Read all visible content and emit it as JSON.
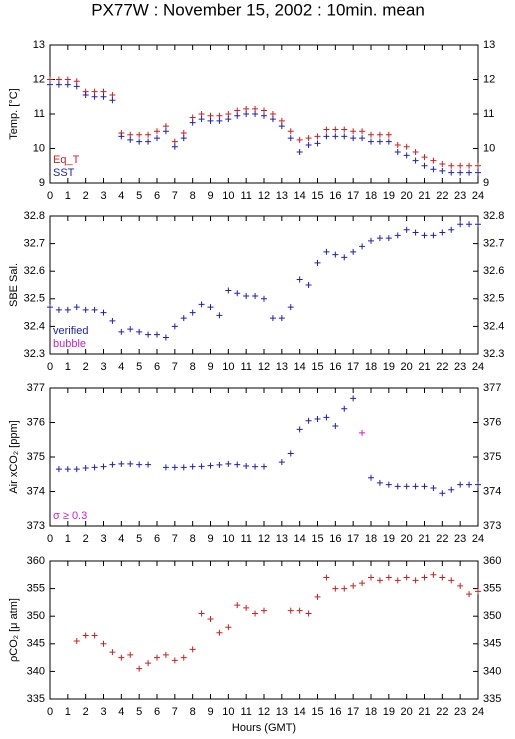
{
  "chart_data": [
    {
      "type": "scatter",
      "title": "PX77W : November 15, 2002 : 10min. mean",
      "ylabel": "Temp. [°C]",
      "x": [
        0,
        0.5,
        1,
        1.5,
        2,
        2.5,
        3,
        3.5,
        4,
        4.5,
        5,
        5.5,
        6,
        6.5,
        7,
        7.5,
        8,
        8.5,
        9,
        9.5,
        10,
        10.5,
        11,
        11.5,
        12,
        12.5,
        13,
        13.5,
        14,
        14.5,
        15,
        15.5,
        16,
        16.5,
        17,
        17.5,
        18,
        18.5,
        19,
        19.5,
        20,
        20.5,
        21,
        21.5,
        22,
        22.5,
        23,
        23.5,
        24
      ],
      "series": [
        {
          "name": "Eq_T",
          "color": "#cc2020",
          "values": [
            12.0,
            12.0,
            12.0,
            11.95,
            11.65,
            11.65,
            11.65,
            11.55,
            10.45,
            10.4,
            10.4,
            10.4,
            10.5,
            10.65,
            10.2,
            10.45,
            10.9,
            11.0,
            10.95,
            10.95,
            11.0,
            11.1,
            11.15,
            11.15,
            11.1,
            11.0,
            10.8,
            10.5,
            10.25,
            10.3,
            10.35,
            10.55,
            10.55,
            10.55,
            10.5,
            10.5,
            10.4,
            10.4,
            10.4,
            10.1,
            10.05,
            9.9,
            9.75,
            9.65,
            9.55,
            9.5,
            9.5,
            9.5,
            9.5
          ]
        },
        {
          "name": "SST",
          "color": "#2020b0",
          "values": [
            11.85,
            11.85,
            11.85,
            11.8,
            11.55,
            11.5,
            11.5,
            11.4,
            10.35,
            10.25,
            10.2,
            10.2,
            10.3,
            10.5,
            10.05,
            10.3,
            10.75,
            10.85,
            10.8,
            10.8,
            10.85,
            10.95,
            11.0,
            11.0,
            10.95,
            10.85,
            10.65,
            10.3,
            9.9,
            10.1,
            10.15,
            10.35,
            10.35,
            10.35,
            10.3,
            10.3,
            10.2,
            10.2,
            10.2,
            9.9,
            9.8,
            9.65,
            9.5,
            9.4,
            9.35,
            9.3,
            9.3,
            9.3,
            9.3
          ]
        }
      ],
      "xlim": [
        0,
        24
      ],
      "xticks": [
        0,
        1,
        2,
        3,
        4,
        5,
        6,
        7,
        8,
        9,
        10,
        11,
        12,
        13,
        14,
        15,
        16,
        17,
        18,
        19,
        20,
        21,
        22,
        23,
        24
      ],
      "ylim": [
        9,
        13
      ],
      "yticks": [
        9,
        10,
        11,
        12,
        13
      ],
      "legend": "lower left"
    },
    {
      "type": "scatter",
      "ylabel": "SBE Sal.",
      "x": [
        0,
        0.5,
        1,
        1.5,
        2,
        2.5,
        3,
        3.5,
        4,
        4.5,
        5,
        5.5,
        6,
        6.5,
        7,
        7.5,
        8,
        8.5,
        9,
        9.5,
        10,
        10.5,
        11,
        11.5,
        12,
        12.5,
        13,
        13.5,
        14,
        14.5,
        15,
        15.5,
        16,
        16.5,
        17,
        17.5,
        18,
        18.5,
        19,
        19.5,
        20,
        20.5,
        21,
        21.5,
        22,
        22.5,
        23,
        23.5,
        24
      ],
      "series": [
        {
          "name": "verified",
          "color": "#2020b0",
          "values": [
            32.47,
            32.46,
            32.46,
            32.47,
            32.46,
            32.46,
            32.45,
            32.42,
            32.38,
            32.39,
            32.38,
            32.37,
            32.37,
            32.36,
            32.4,
            32.43,
            32.45,
            32.48,
            32.47,
            32.44,
            32.53,
            32.52,
            32.51,
            32.51,
            32.5,
            32.43,
            32.43,
            32.47,
            32.57,
            32.55,
            32.63,
            32.67,
            32.66,
            32.65,
            32.67,
            32.69,
            32.71,
            32.72,
            32.72,
            32.73,
            32.75,
            32.74,
            32.73,
            32.73,
            32.74,
            32.75,
            32.77,
            32.77,
            32.77
          ]
        },
        {
          "name": "bubble",
          "color": "#cc20cc",
          "values": [
            null,
            null,
            null,
            null,
            null,
            null,
            null,
            null,
            null,
            null,
            null,
            null,
            null,
            null,
            null,
            null,
            null,
            null,
            null,
            null,
            null,
            null,
            null,
            null,
            null,
            null,
            null,
            null,
            null,
            null,
            null,
            null,
            null,
            null,
            null,
            null,
            null,
            null,
            null,
            null,
            null,
            null,
            null,
            null,
            null,
            null,
            null,
            null,
            null
          ]
        }
      ],
      "xlim": [
        0,
        24
      ],
      "xticks": [
        0,
        1,
        2,
        3,
        4,
        5,
        6,
        7,
        8,
        9,
        10,
        11,
        12,
        13,
        14,
        15,
        16,
        17,
        18,
        19,
        20,
        21,
        22,
        23,
        24
      ],
      "ylim": [
        32.3,
        32.8
      ],
      "yticks": [
        32.3,
        32.4,
        32.5,
        32.6,
        32.7,
        32.8
      ],
      "legend": "lower left"
    },
    {
      "type": "scatter",
      "ylabel": "Air xCO₂ [ppm]",
      "x": [
        0,
        0.5,
        1,
        1.5,
        2,
        2.5,
        3,
        3.5,
        4,
        4.5,
        5,
        5.5,
        6,
        6.5,
        7,
        7.5,
        8,
        8.5,
        9,
        9.5,
        10,
        10.5,
        11,
        11.5,
        12,
        12.5,
        13,
        13.5,
        14,
        14.5,
        15,
        15.5,
        16,
        16.5,
        17,
        17.5,
        18,
        18.5,
        19,
        19.5,
        20,
        20.5,
        21,
        21.5,
        22,
        22.5,
        23,
        23.5,
        24
      ],
      "series": [
        {
          "color": "#2020b0",
          "values": [
            null,
            374.65,
            374.65,
            374.65,
            374.68,
            374.7,
            374.72,
            374.78,
            374.8,
            374.8,
            374.78,
            374.78,
            null,
            374.7,
            374.7,
            374.7,
            374.72,
            374.73,
            374.75,
            374.77,
            374.8,
            374.78,
            374.74,
            374.72,
            374.72,
            null,
            374.85,
            375.1,
            375.8,
            376.05,
            376.1,
            376.15,
            375.9,
            376.4,
            376.7,
            null,
            374.4,
            374.25,
            374.2,
            374.15,
            374.15,
            374.15,
            374.15,
            374.1,
            373.95,
            374.05,
            374.2,
            374.2,
            374.2
          ]
        },
        {
          "name": "σ ≥ 0.3",
          "color": "#cc20cc",
          "values": [
            null,
            null,
            null,
            null,
            null,
            null,
            null,
            null,
            null,
            null,
            null,
            null,
            null,
            null,
            null,
            null,
            null,
            null,
            null,
            null,
            null,
            null,
            null,
            null,
            null,
            null,
            null,
            null,
            null,
            null,
            null,
            null,
            null,
            null,
            null,
            375.7,
            null,
            null,
            null,
            null,
            null,
            null,
            null,
            null,
            null,
            null,
            null,
            null,
            null
          ]
        }
      ],
      "xlim": [
        0,
        24
      ],
      "xticks": [
        0,
        1,
        2,
        3,
        4,
        5,
        6,
        7,
        8,
        9,
        10,
        11,
        12,
        13,
        14,
        15,
        16,
        17,
        18,
        19,
        20,
        21,
        22,
        23,
        24
      ],
      "ylim": [
        373,
        377
      ],
      "yticks": [
        373,
        374,
        375,
        376,
        377
      ],
      "legend": "lower left"
    },
    {
      "type": "scatter",
      "ylabel": "ρCO₂ [μ atm]",
      "xlabel": "Hours (GMT)",
      "x": [
        0,
        0.5,
        1,
        1.5,
        2,
        2.5,
        3,
        3.5,
        4,
        4.5,
        5,
        5.5,
        6,
        6.5,
        7,
        7.5,
        8,
        8.5,
        9,
        9.5,
        10,
        10.5,
        11,
        11.5,
        12,
        12.5,
        13,
        13.5,
        14,
        14.5,
        15,
        15.5,
        16,
        16.5,
        17,
        17.5,
        18,
        18.5,
        19,
        19.5,
        20,
        20.5,
        21,
        21.5,
        22,
        22.5,
        23,
        23.5,
        24
      ],
      "series": [
        {
          "color": "#cc2020",
          "values": [
            null,
            null,
            null,
            345.5,
            346.5,
            346.5,
            345,
            343.5,
            342.5,
            343,
            340.5,
            341.5,
            342.5,
            343,
            342,
            342.5,
            344,
            350.5,
            349.5,
            347,
            348,
            352,
            351.5,
            350.5,
            351,
            null,
            null,
            351,
            351,
            350.5,
            353.5,
            357,
            355,
            355,
            355.5,
            356,
            357,
            356.5,
            357,
            356.5,
            357,
            356.5,
            357,
            357.5,
            357,
            356.5,
            355.5,
            354,
            354.5
          ]
        }
      ],
      "xlim": [
        0,
        24
      ],
      "xticks": [
        0,
        1,
        2,
        3,
        4,
        5,
        6,
        7,
        8,
        9,
        10,
        11,
        12,
        13,
        14,
        15,
        16,
        17,
        18,
        19,
        20,
        21,
        22,
        23,
        24
      ],
      "ylim": [
        335,
        360
      ],
      "yticks": [
        335,
        340,
        345,
        350,
        355,
        360
      ]
    }
  ]
}
